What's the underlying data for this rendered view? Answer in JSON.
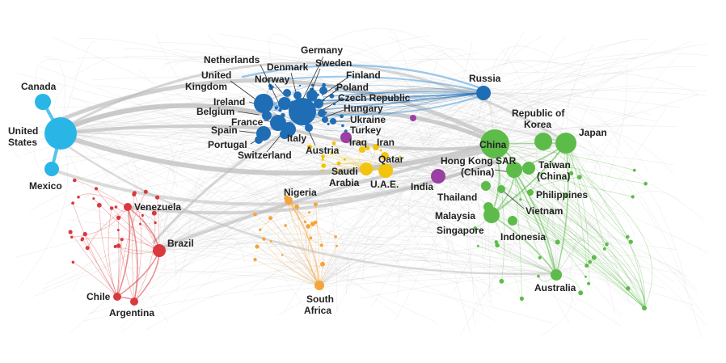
{
  "colors": {
    "north_america": "#29b6e6",
    "latin_america": "#d93a3e",
    "europe": "#1f6db5",
    "middle_east": "#f2c40f",
    "africa": "#f5a43a",
    "south_asia": "#9b3fa3",
    "east_asia": "#5dbb4a",
    "edges_grey": "#b9b9b9"
  },
  "labels": {
    "canada": "Canada",
    "united_states_1": "United",
    "united_states_2": "States",
    "mexico": "Mexico",
    "venezuela": "Venezuela",
    "brazil": "Brazil",
    "chile": "Chile",
    "argentina": "Argentina",
    "netherlands": "Netherlands",
    "germany": "Germany",
    "denmark": "Denmark",
    "sweden": "Sweden",
    "united_kingdom_1": "United",
    "united_kingdom_2": "Kingdom",
    "norway": "Norway",
    "finland": "Finland",
    "ireland": "Ireland",
    "poland": "Poland",
    "belgium": "Belgium",
    "czech_republic": "Czech Republic",
    "hungary": "Hungary",
    "france": "France",
    "ukraine": "Ukraine",
    "spain": "Spain",
    "italy": "Italy",
    "turkey": "Turkey",
    "portugal": "Portugal",
    "austria": "Austria",
    "iraq": "Iraq",
    "iran": "Iran",
    "switzerland": "Switzerland",
    "qatar": "Qatar",
    "saudi_arabia_1": "Saudi",
    "saudi_arabia_2": "Arabia",
    "uae": "U.A.E.",
    "nigeria": "Nigeria",
    "south_africa_1": "South",
    "south_africa_2": "Africa",
    "russia": "Russia",
    "india": "India",
    "republic_of_korea_1": "Republic of",
    "republic_of_korea_2": "Korea",
    "china": "China",
    "japan": "Japan",
    "hong_kong_1": "Hong Kong SAR",
    "hong_kong_2": "(China)",
    "taiwan_1": "Taiwan",
    "taiwan_2": "(China)",
    "thailand": "Thailand",
    "philippines": "Philippines",
    "malaysia": "Malaysia",
    "vietnam": "Vietnam",
    "singapore": "Singapore",
    "indonesia": "Indonesia",
    "australia": "Australia"
  }
}
